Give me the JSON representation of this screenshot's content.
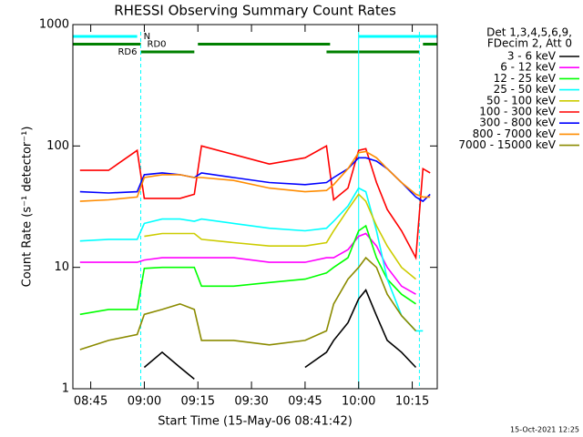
{
  "chart_data": {
    "type": "line",
    "title": "RHESSI Observing Summary Count Rates",
    "x_label": "Start Time (15-May-06 08:41:42)",
    "y_label": "Count Rate (s⁻¹ detector⁻¹)",
    "legend_header": [
      "Det 1,3,4,5,6,9,",
      "FDecim 2, Att 0"
    ],
    "footer": "15-Oct-2021 12:25",
    "log_y": true,
    "xlim": [
      "08:40",
      "10:22"
    ],
    "xticks": [
      "08:45",
      "09:00",
      "09:15",
      "09:30",
      "09:45",
      "10:00",
      "10:15"
    ],
    "ylim": [
      1,
      1000
    ],
    "yticks": [
      1,
      10,
      100,
      1000
    ],
    "x": [
      "08:42",
      "08:50",
      "08:58",
      "09:00",
      "09:05",
      "09:10",
      "09:14",
      "09:16",
      "09:25",
      "09:35",
      "09:45",
      "09:51",
      "09:53",
      "09:57",
      "10:00",
      "10:02",
      "10:05",
      "10:08",
      "10:12",
      "10:16",
      "10:18",
      "10:20"
    ],
    "series": [
      {
        "name": "3 - 6 keV",
        "color": "#000000",
        "values": [
          null,
          null,
          null,
          1.5,
          2,
          1.5,
          1.2,
          null,
          null,
          null,
          1.5,
          2,
          2.5,
          3.5,
          5.5,
          6.5,
          4,
          2.5,
          2,
          1.5,
          null,
          null
        ]
      },
      {
        "name": "6 - 12 keV",
        "color": "#ff00ff",
        "values": [
          11,
          11,
          11,
          11.5,
          12,
          12,
          12,
          12,
          12,
          11,
          11,
          12,
          12,
          14,
          18,
          19,
          15,
          10,
          7,
          6,
          null,
          null
        ]
      },
      {
        "name": "12 - 25 keV",
        "color": "#00ff00",
        "values": [
          4.1,
          4.5,
          4.5,
          9.8,
          10,
          10,
          10,
          7,
          7,
          7.5,
          8,
          9,
          10,
          12,
          20,
          22,
          12,
          8,
          6,
          5,
          null,
          null
        ]
      },
      {
        "name": "25 - 50 keV",
        "color": "#00ffff",
        "values": [
          16.5,
          17,
          17,
          23,
          25,
          25,
          24,
          25,
          23,
          21,
          20,
          21,
          24,
          32,
          45,
          42,
          20,
          8,
          4,
          3,
          3,
          null
        ]
      },
      {
        "name": "50 - 100 keV",
        "color": "#cccc00",
        "values": [
          null,
          null,
          null,
          18,
          19,
          19,
          19,
          17,
          16,
          15,
          15,
          16,
          20,
          30,
          40,
          35,
          22,
          15,
          10,
          8,
          null,
          null
        ]
      },
      {
        "name": "100 - 300 keV",
        "color": "#ff0000",
        "values": [
          63,
          63,
          92,
          37,
          37,
          37,
          40,
          100,
          85,
          71,
          80,
          100,
          36,
          45,
          92,
          95,
          50,
          30,
          20,
          12,
          65,
          60
        ]
      },
      {
        "name": "300 - 800 keV",
        "color": "#0000ff",
        "values": [
          42,
          41,
          42,
          58,
          60,
          58,
          55,
          60,
          55,
          50,
          48,
          50,
          55,
          65,
          80,
          80,
          75,
          65,
          50,
          38,
          35,
          40
        ]
      },
      {
        "name": "800 - 7000 keV",
        "color": "#ff8c00",
        "values": [
          35,
          36,
          38,
          55,
          58,
          58,
          55,
          55,
          52,
          45,
          42,
          43,
          48,
          65,
          88,
          90,
          80,
          65,
          50,
          40,
          38,
          38
        ]
      },
      {
        "name": "7000 - 15000 keV",
        "color": "#8b8b00",
        "values": [
          2.1,
          2.5,
          2.8,
          4.1,
          4.5,
          5,
          4.5,
          2.5,
          2.5,
          2.3,
          2.5,
          3,
          5,
          8,
          10,
          12,
          10,
          6,
          4,
          3,
          null,
          null
        ]
      }
    ],
    "flags": [
      {
        "label": "N",
        "color": "#00ffff",
        "intervals": [
          [
            "08:40",
            "08:58"
          ],
          [
            "10:00",
            "10:22"
          ]
        ]
      },
      {
        "label": "RD0",
        "color": "#008000",
        "intervals": [
          [
            "08:40",
            "08:59"
          ],
          [
            "09:15",
            "09:52"
          ],
          [
            "10:18",
            "10:22"
          ]
        ]
      },
      {
        "label": "RD6",
        "color": "#008000",
        "intervals": [
          [
            "08:59",
            "09:14"
          ],
          [
            "09:51",
            "10:17"
          ]
        ]
      }
    ],
    "vlines": [
      {
        "x": "08:59",
        "color": "#00ffff",
        "dashed": true
      },
      {
        "x": "10:00",
        "color": "#00ffff",
        "dashed": false
      },
      {
        "x": "10:17",
        "color": "#00ffff",
        "dashed": true
      }
    ]
  }
}
